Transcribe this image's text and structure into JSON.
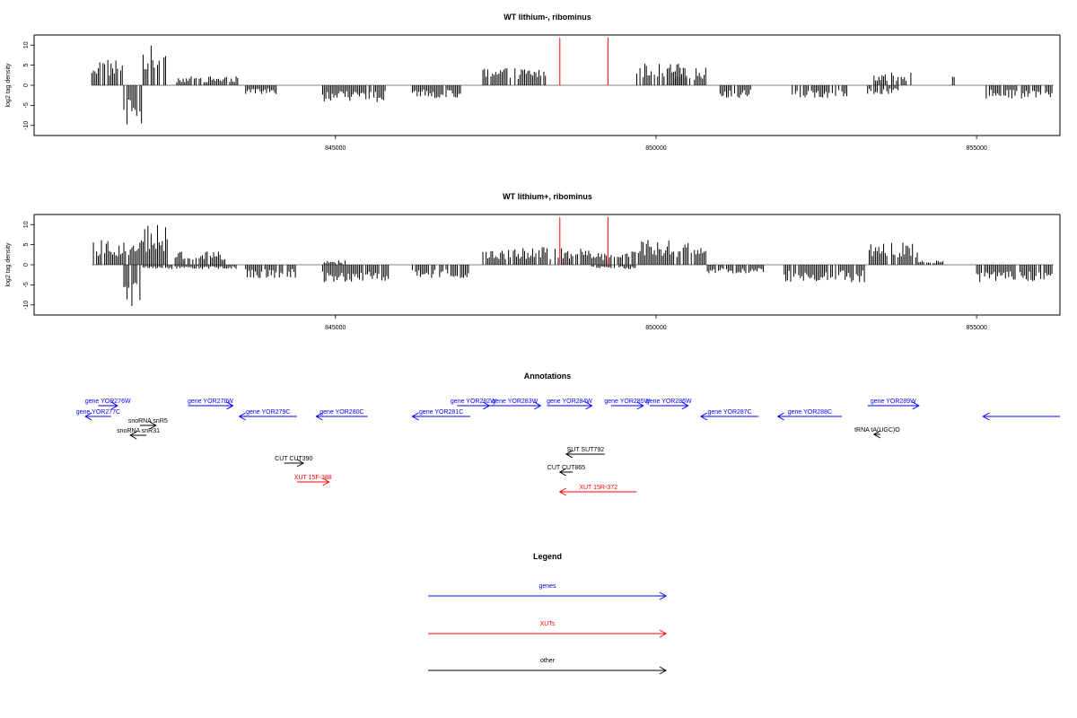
{
  "chart_data": [
    {
      "type": "bar",
      "title": "WT lithium-, ribominus",
      "xlabel": "",
      "ylabel": "log2 tag density",
      "xlim": [
        840300,
        856300
      ],
      "ylim": [
        -12.5,
        12.5
      ],
      "yticks": [
        10,
        5,
        0,
        -5,
        -10
      ],
      "xticks": [
        845000,
        850000,
        855000
      ],
      "markers": [
        848500,
        849250
      ],
      "plus_segments": [
        {
          "start": 841200,
          "end": 841700,
          "value": 6
        },
        {
          "start": 842000,
          "end": 842400,
          "value": 9
        },
        {
          "start": 842500,
          "end": 843500,
          "value": 2
        },
        {
          "start": 847300,
          "end": 848300,
          "value": 4
        },
        {
          "start": 849700,
          "end": 850500,
          "value": 5
        },
        {
          "start": 850300,
          "end": 850800,
          "value": 4
        },
        {
          "start": 853400,
          "end": 854000,
          "value": 3
        },
        {
          "start": 854600,
          "end": 854700,
          "value": 2
        }
      ],
      "minus_segments": [
        {
          "start": 841700,
          "end": 842000,
          "value": -9
        },
        {
          "start": 843600,
          "end": 844100,
          "value": -2
        },
        {
          "start": 844800,
          "end": 845800,
          "value": -4
        },
        {
          "start": 846200,
          "end": 847000,
          "value": -3
        },
        {
          "start": 851000,
          "end": 851500,
          "value": -3
        },
        {
          "start": 852100,
          "end": 853000,
          "value": -3
        },
        {
          "start": 853300,
          "end": 853800,
          "value": -2
        },
        {
          "start": 855100,
          "end": 856200,
          "value": -3
        }
      ]
    },
    {
      "type": "bar",
      "title": "WT lithium+, ribominus",
      "xlabel": "",
      "ylabel": "log2 tag density",
      "xlim": [
        840300,
        856300
      ],
      "ylim": [
        -12.5,
        12.5
      ],
      "yticks": [
        10,
        5,
        0,
        -5,
        -10
      ],
      "xticks": [
        845000,
        850000,
        855000
      ],
      "markers": [
        848500,
        849250
      ],
      "plus_segments": [
        {
          "start": 841200,
          "end": 842000,
          "value": 6
        },
        {
          "start": 842000,
          "end": 842400,
          "value": 9
        },
        {
          "start": 842500,
          "end": 843300,
          "value": 3
        },
        {
          "start": 844800,
          "end": 845200,
          "value": 1
        },
        {
          "start": 847300,
          "end": 849000,
          "value": 4
        },
        {
          "start": 849000,
          "end": 849700,
          "value": 3
        },
        {
          "start": 849700,
          "end": 850300,
          "value": 6
        },
        {
          "start": 850300,
          "end": 850800,
          "value": 5
        },
        {
          "start": 853300,
          "end": 854100,
          "value": 5
        },
        {
          "start": 854100,
          "end": 854500,
          "value": 1
        }
      ],
      "minus_segments": [
        {
          "start": 841700,
          "end": 842000,
          "value": -10
        },
        {
          "start": 842000,
          "end": 843500,
          "value": -1
        },
        {
          "start": 843600,
          "end": 844400,
          "value": -3
        },
        {
          "start": 844800,
          "end": 845900,
          "value": -4
        },
        {
          "start": 846200,
          "end": 847100,
          "value": -3
        },
        {
          "start": 849000,
          "end": 849700,
          "value": -1
        },
        {
          "start": 850800,
          "end": 851700,
          "value": -2
        },
        {
          "start": 852000,
          "end": 853300,
          "value": -4
        },
        {
          "start": 855000,
          "end": 856200,
          "value": -4
        }
      ]
    }
  ],
  "annotations": {
    "title": "Annotations",
    "features": [
      {
        "label": "gene YOR276W",
        "type": "gene",
        "strand": "+",
        "start": 841300,
        "end": 841600
      },
      {
        "label": "gene YOR277C",
        "type": "gene",
        "strand": "-",
        "start": 841100,
        "end": 841500
      },
      {
        "label": "snoRNA snR5",
        "type": "other",
        "strand": "+",
        "start": 841950,
        "end": 842200
      },
      {
        "label": "snoRNA snR31",
        "type": "other",
        "strand": "-",
        "start": 841800,
        "end": 842050
      },
      {
        "label": "gene YOR278W",
        "type": "gene",
        "strand": "+",
        "start": 842700,
        "end": 843400
      },
      {
        "label": "gene YOR279C",
        "type": "gene",
        "strand": "-",
        "start": 843500,
        "end": 844400
      },
      {
        "label": "gene YOR280C",
        "type": "gene",
        "strand": "-",
        "start": 844700,
        "end": 845500
      },
      {
        "label": "gene YOR281C",
        "type": "gene",
        "strand": "-",
        "start": 846200,
        "end": 847100
      },
      {
        "label": "gene YOR282W",
        "type": "gene",
        "strand": "+",
        "start": 846900,
        "end": 847400
      },
      {
        "label": "gene YOR283W",
        "type": "gene",
        "strand": "+",
        "start": 847400,
        "end": 848200
      },
      {
        "label": "gene YOR284W",
        "type": "gene",
        "strand": "+",
        "start": 848300,
        "end": 849000
      },
      {
        "label": "gene YOR285W",
        "type": "gene",
        "strand": "+",
        "start": 849300,
        "end": 849800
      },
      {
        "label": "gene YOR286W",
        "type": "gene",
        "strand": "+",
        "start": 849900,
        "end": 850500
      },
      {
        "label": "gene YOR287C",
        "type": "gene",
        "strand": "-",
        "start": 850700,
        "end": 851600
      },
      {
        "label": "gene YOR288C",
        "type": "gene",
        "strand": "-",
        "start": 851900,
        "end": 852900
      },
      {
        "label": "gene YOR289W",
        "type": "gene",
        "strand": "+",
        "start": 853300,
        "end": 854100
      },
      {
        "label": "",
        "type": "gene",
        "strand": "-",
        "start": 855100,
        "end": 856300
      },
      {
        "label": "tRNA tA(UGC)O",
        "type": "other",
        "strand": "-",
        "start": 853400,
        "end": 853500
      },
      {
        "label": "SUT SUT792",
        "type": "other",
        "strand": "-",
        "start": 848600,
        "end": 849200
      },
      {
        "label": "CUT CUT390",
        "type": "other",
        "strand": "+",
        "start": 844200,
        "end": 844500
      },
      {
        "label": "CUT CUT865",
        "type": "other",
        "strand": "-",
        "start": 848500,
        "end": 848700
      },
      {
        "label": "XUT 15F-388",
        "type": "xut",
        "strand": "+",
        "start": 844400,
        "end": 844900
      },
      {
        "label": "XUT 15R-372",
        "type": "xut",
        "strand": "-",
        "start": 848500,
        "end": 849700
      }
    ]
  },
  "legend": {
    "title": "Legend",
    "items": [
      {
        "label": "genes",
        "color": "#0000ff"
      },
      {
        "label": "XUTs",
        "color": "#ff0000"
      },
      {
        "label": "other",
        "color": "#000000"
      }
    ]
  },
  "colors": {
    "gene": "#0000ff",
    "xut": "#ff0000",
    "other": "#000000",
    "marker": "#ff0000",
    "data": "#000000"
  }
}
